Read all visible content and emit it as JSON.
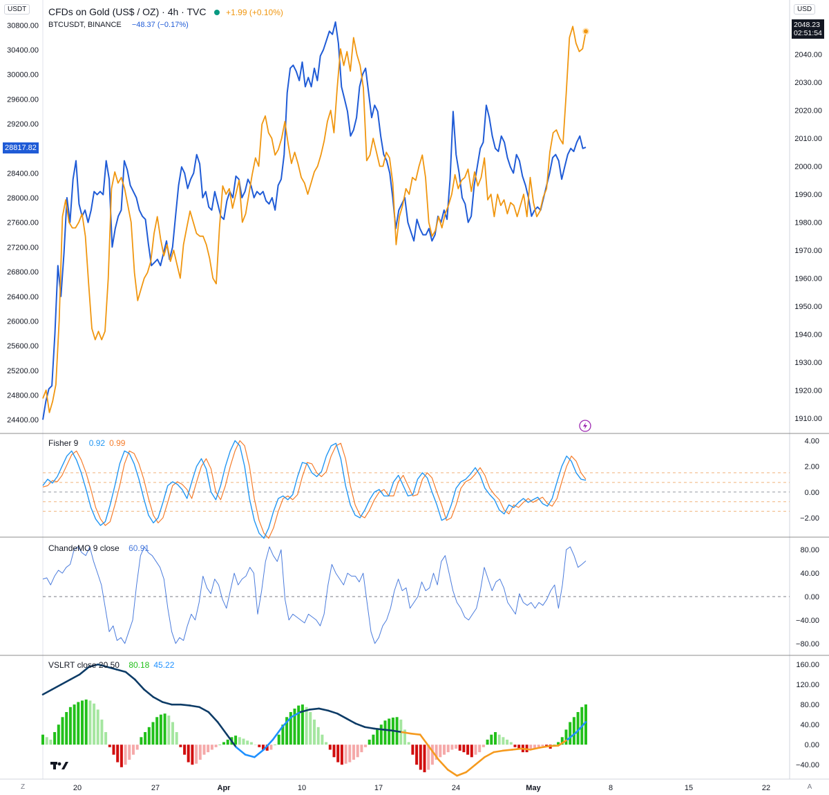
{
  "colors": {
    "gold": "#f0960f",
    "btc": "#1f5bd6",
    "fisher": "#2196f3",
    "fisher_trigger": "#f57c2a",
    "cmo": "#4a7bdc",
    "vslrt_up_strong": "#22c01a",
    "vslrt_up_weak": "#a5e6a0",
    "vslrt_down_strong": "#d10e0e",
    "vslrt_down_weak": "#f5a9a9",
    "vslrt_line_dark": "#0d3b66",
    "vslrt_line_light": "#1e90ff",
    "vslrt_line_orange": "#f59a1e"
  },
  "header": {
    "symbol_title": "CFDs on Gold (US$ / OZ) · 4h · TVC",
    "gold_change": "+1.99 (+0.10%)",
    "compare_symbol": "BTCUSDT, BINANCE",
    "btc_change": "−48.37 (−0.17%)",
    "left_unit": "USDT",
    "right_unit": "USD",
    "btc_last": "28817.82",
    "gold_last": "2048.23",
    "countdown": "02:51:54"
  },
  "panes": {
    "fisher": {
      "label": "Fisher 9",
      "value1": "0.92",
      "value2": "0.99"
    },
    "cmo": {
      "label": "ChandeMO 9 close",
      "value": "60.91"
    },
    "vslrt": {
      "label": "VSLRT close 20 50",
      "value1": "80.18",
      "value2": "45.22"
    }
  },
  "bottom_controls": {
    "zoom": "Z",
    "auto": "A"
  },
  "chart_data": {
    "type": "line",
    "x_axis": {
      "ticks": [
        "20",
        "27",
        "Apr",
        "10",
        "17",
        "24",
        "May",
        "8",
        "15",
        "22"
      ]
    },
    "main": {
      "left_axis": {
        "ticks": [
          "24400.00",
          "24800.00",
          "25200.00",
          "25600.00",
          "26000.00",
          "26400.00",
          "26800.00",
          "27200.00",
          "27600.00",
          "28000.00",
          "28400.00",
          "28800.00",
          "29200.00",
          "29600.00",
          "30000.00",
          "30400.00",
          "30800.00"
        ],
        "ylim": [
          24200,
          30960
        ]
      },
      "right_axis": {
        "ticks": [
          "1910.00",
          "1920.00",
          "1930.00",
          "1940.00",
          "1950.00",
          "1960.00",
          "1970.00",
          "1980.00",
          "1990.00",
          "2000.00",
          "2010.00",
          "2020.00",
          "2030.00",
          "2040.00",
          "2050.00"
        ],
        "ylim": [
          1905,
          2054
        ]
      },
      "series": [
        {
          "name": "BTCUSDT, BINANCE",
          "axis": "left",
          "values": [
            24400,
            24700,
            24900,
            24950,
            25800,
            26900,
            26400,
            27100,
            28000,
            27600,
            28300,
            28600,
            27900,
            27700,
            27800,
            27600,
            27800,
            28100,
            28050,
            28100,
            28050,
            28600,
            28300,
            27200,
            27500,
            27700,
            27800,
            28600,
            28450,
            28200,
            28100,
            28000,
            27800,
            27700,
            27650,
            27250,
            26900,
            26950,
            27000,
            26900,
            27100,
            27300,
            27000,
            27200,
            27700,
            28200,
            28500,
            28400,
            28150,
            28300,
            28400,
            28700,
            28550,
            28000,
            28100,
            27850,
            27800,
            28100,
            27900,
            27700,
            27650,
            27950,
            28100,
            28000,
            28350,
            28300,
            28000,
            28100,
            28300,
            28200,
            28000,
            28100,
            28050,
            28100,
            27950,
            27900,
            28000,
            27800,
            28200,
            28300,
            28700,
            29700,
            30100,
            30150,
            30050,
            29900,
            30200,
            29800,
            29950,
            29800,
            30100,
            29900,
            30300,
            30400,
            30550,
            30700,
            30650,
            30850,
            30500,
            29800,
            29600,
            29400,
            29000,
            29100,
            29300,
            29800,
            30000,
            30100,
            29700,
            29300,
            29500,
            29400,
            29000,
            28700,
            28600,
            28400,
            28000,
            27500,
            27800,
            27900,
            28000,
            27600,
            27450,
            27300,
            27650,
            27500,
            27400,
            27400,
            27500,
            27300,
            27400,
            27700,
            27600,
            27800,
            27650,
            28300,
            29400,
            28700,
            28400,
            28000,
            27900,
            27600,
            27700,
            28200,
            28500,
            28800,
            28900,
            29500,
            29300,
            29000,
            28800,
            28750,
            29000,
            28900,
            28650,
            28500,
            28400,
            28700,
            28600,
            28350,
            28200,
            28000,
            27700,
            27800,
            27850,
            27800,
            28000,
            28200,
            28400,
            28650,
            28700,
            28600,
            28300,
            28500,
            28700,
            28800,
            28750,
            28900,
            29000,
            28800,
            28817.82
          ]
        },
        {
          "name": "CFDs on Gold (US$ / OZ)",
          "axis": "right",
          "values": [
            1917,
            1920,
            1912,
            1916,
            1922,
            1945,
            1982,
            1988,
            1980,
            1978,
            1978,
            1980,
            1983,
            1975,
            1958,
            1942,
            1938,
            1941,
            1938,
            1941,
            1960,
            1992,
            1998,
            1994,
            1996,
            1992,
            1986,
            1980,
            1962,
            1952,
            1956,
            1960,
            1962,
            1966,
            1976,
            1982,
            1974,
            1968,
            1972,
            1966,
            1970,
            1965,
            1960,
            1972,
            1978,
            1984,
            1980,
            1976,
            1975,
            1975,
            1972,
            1967,
            1960,
            1958,
            1978,
            1993,
            1990,
            1992,
            1985,
            1990,
            1995,
            1980,
            1983,
            1990,
            1997,
            2003,
            2000,
            2015,
            2018,
            2012,
            2010,
            2004,
            2006,
            2010,
            2016,
            2008,
            2001,
            2005,
            2001,
            1996,
            1994,
            1990,
            1994,
            1998,
            2000,
            2004,
            2009,
            2016,
            2020,
            2012,
            2028,
            2042,
            2036,
            2041,
            2034,
            2046,
            2040,
            2036,
            2028,
            2002,
            2004,
            2010,
            2005,
            2000,
            2000,
            2005,
            2003,
            1994,
            1972,
            1982,
            1986,
            1992,
            1990,
            1996,
            1995,
            2000,
            2004,
            1996,
            1980,
            1975,
            1977,
            1982,
            1978,
            1983,
            1986,
            1990,
            1997,
            1992,
            1995,
            1996,
            1999,
            1991,
            1998,
            1993,
            1996,
            2003,
            1988,
            1990,
            1982,
            1990,
            1986,
            1988,
            1983,
            1987,
            1986,
            1982,
            1986,
            1990,
            1982,
            1996,
            1987,
            1982,
            1984,
            1989,
            1992,
            2005,
            2012,
            2013,
            2010,
            2008,
            2026,
            2046,
            2050,
            2044,
            2041,
            2042,
            2048.23
          ]
        }
      ]
    },
    "fisher": {
      "y_axis": {
        "ticks": [
          "4.00",
          "2.00",
          "0.00",
          "−2.00"
        ],
        "ylim": [
          -3.4,
          4.4
        ]
      },
      "series": [
        {
          "label": "0.92",
          "values": [
            0.5,
            1.0,
            0.7,
            1.2,
            2.0,
            2.8,
            3.2,
            2.5,
            1.5,
            0.2,
            -1.2,
            -2.1,
            -2.6,
            -2.3,
            -1.0,
            0.5,
            2.2,
            3.2,
            3.0,
            2.2,
            1.0,
            -0.5,
            -1.8,
            -2.4,
            -2.0,
            -0.8,
            0.5,
            0.8,
            0.6,
            0.2,
            -0.5,
            0.8,
            2.0,
            2.6,
            1.8,
            0.0,
            -0.6,
            0.5,
            2.0,
            3.2,
            4.0,
            3.6,
            2.0,
            -0.5,
            -2.2,
            -3.2,
            -3.6,
            -2.8,
            -1.5,
            -0.5,
            -0.3,
            -0.6,
            -0.2,
            1.2,
            2.3,
            2.2,
            1.5,
            1.2,
            1.6,
            2.8,
            3.6,
            3.8,
            2.6,
            0.5,
            -1.0,
            -1.8,
            -2.0,
            -1.4,
            -0.6,
            0.0,
            0.2,
            -0.3,
            -0.3,
            0.8,
            1.3,
            0.5,
            -0.3,
            -0.2,
            1.0,
            1.5,
            1.1,
            0.0,
            -1.0,
            -2.2,
            -2.0,
            -1.0,
            0.3,
            0.8,
            1.0,
            1.4,
            1.9,
            1.3,
            0.3,
            -0.2,
            -0.6,
            -1.4,
            -1.7,
            -1.0,
            -1.2,
            -0.8,
            -0.5,
            -0.8,
            -0.6,
            -0.4,
            -0.9,
            -1.1,
            -0.5,
            0.8,
            2.0,
            2.8,
            2.4,
            1.5,
            1.0,
            0.92
          ]
        },
        {
          "label": "0.99",
          "values": [
            0.4,
            0.5,
            0.9,
            0.8,
            1.3,
            2.1,
            2.9,
            3.2,
            2.5,
            1.5,
            0.2,
            -1.2,
            -2.1,
            -2.6,
            -2.3,
            -1.0,
            0.5,
            2.2,
            3.2,
            3.0,
            2.2,
            1.0,
            -0.5,
            -1.8,
            -2.4,
            -2.0,
            -0.8,
            0.5,
            0.8,
            0.6,
            0.2,
            -0.5,
            0.8,
            2.0,
            2.6,
            1.8,
            0.0,
            -0.6,
            0.5,
            2.0,
            3.2,
            4.0,
            3.6,
            2.0,
            -0.5,
            -2.2,
            -3.2,
            -3.6,
            -2.8,
            -1.5,
            -0.5,
            -0.3,
            -0.6,
            -0.2,
            1.2,
            2.3,
            2.2,
            1.5,
            1.2,
            1.6,
            2.8,
            3.6,
            3.8,
            2.6,
            0.5,
            -1.0,
            -1.8,
            -2.0,
            -1.4,
            -0.6,
            0.0,
            0.2,
            -0.3,
            -0.3,
            0.8,
            1.3,
            0.5,
            -0.3,
            -0.2,
            1.0,
            1.5,
            1.1,
            0.0,
            -1.0,
            -2.2,
            -2.0,
            -1.0,
            0.3,
            0.8,
            1.0,
            1.4,
            1.9,
            1.3,
            0.3,
            -0.2,
            -0.6,
            -1.4,
            -1.7,
            -1.0,
            -1.2,
            -0.8,
            -0.5,
            -0.8,
            -0.6,
            -0.4,
            -0.9,
            -1.1,
            -0.5,
            0.8,
            2.0,
            2.8,
            2.4,
            1.5,
            0.99
          ]
        }
      ],
      "levels": [
        1.5,
        0.75,
        0,
        -0.75,
        -1.5
      ]
    },
    "cmo": {
      "y_axis": {
        "ticks": [
          "80.00",
          "40.00",
          "0.00",
          "−40.00",
          "−80.00"
        ],
        "ylim": [
          -98,
          98
        ]
      },
      "zero_line": 0,
      "values": [
        30,
        32,
        20,
        35,
        45,
        40,
        50,
        55,
        80,
        85,
        75,
        70,
        85,
        60,
        40,
        20,
        -20,
        -60,
        -50,
        -75,
        -70,
        -80,
        -60,
        -40,
        20,
        70,
        85,
        75,
        70,
        60,
        50,
        30,
        -20,
        -60,
        -80,
        -70,
        -75,
        -50,
        -30,
        -40,
        -10,
        35,
        15,
        5,
        30,
        20,
        -5,
        -20,
        10,
        40,
        20,
        30,
        35,
        50,
        40,
        -30,
        10,
        60,
        85,
        70,
        60,
        80,
        -5,
        -40,
        -30,
        -35,
        -40,
        -45,
        -30,
        -35,
        -40,
        -50,
        -30,
        20,
        55,
        40,
        30,
        20,
        40,
        35,
        35,
        25,
        40,
        -10,
        -60,
        -80,
        -70,
        -50,
        -40,
        -20,
        10,
        30,
        10,
        15,
        -20,
        -10,
        0,
        25,
        10,
        15,
        40,
        20,
        60,
        70,
        40,
        10,
        -10,
        -20,
        -35,
        -40,
        -30,
        -20,
        10,
        50,
        30,
        10,
        25,
        30,
        15,
        -10,
        -20,
        -30,
        5,
        -10,
        -15,
        -10,
        -20,
        -10,
        -15,
        -5,
        10,
        20,
        -20,
        20,
        80,
        85,
        70,
        50,
        55,
        60.91
      ]
    },
    "vslrt": {
      "y_axis": {
        "ticks": [
          "160.00",
          "120.00",
          "80.00",
          "40.00",
          "0.00",
          "−40.00"
        ],
        "ylim": [
          -66,
          174
        ]
      },
      "histogram": [
        20,
        15,
        10,
        25,
        40,
        55,
        65,
        75,
        80,
        85,
        88,
        90,
        88,
        82,
        70,
        50,
        25,
        -5,
        -20,
        -35,
        -45,
        -40,
        -30,
        -20,
        -10,
        15,
        25,
        35,
        45,
        55,
        60,
        62,
        58,
        45,
        25,
        -5,
        -20,
        -35,
        -40,
        -38,
        -30,
        -20,
        -15,
        -10,
        -5,
        0,
        5,
        10,
        15,
        18,
        15,
        12,
        8,
        5,
        0,
        -5,
        -10,
        -12,
        -10,
        0,
        20,
        40,
        55,
        65,
        72,
        78,
        80,
        75,
        65,
        50,
        35,
        20,
        5,
        -10,
        -25,
        -35,
        -40,
        -38,
        -35,
        -30,
        -25,
        -15,
        -5,
        10,
        20,
        30,
        40,
        48,
        52,
        54,
        55,
        50,
        30,
        5,
        -20,
        -40,
        -50,
        -55,
        -50,
        -40,
        -30,
        -25,
        -20,
        -15,
        -10,
        -8,
        -12,
        -15,
        -20,
        -25,
        -20,
        -15,
        -5,
        10,
        20,
        25,
        20,
        15,
        10,
        5,
        -5,
        -10,
        -15,
        -15,
        -10,
        -8,
        -5,
        -3,
        -5,
        -8,
        0,
        5,
        15,
        30,
        45,
        55,
        65,
        75,
        80.18
      ],
      "long_line": [
        100,
        110,
        120,
        130,
        140,
        155,
        160,
        155,
        150,
        145,
        130,
        110,
        95,
        85,
        80,
        80,
        78,
        75,
        65,
        45,
        20,
        -5,
        -20,
        -25,
        -10,
        10,
        35,
        55,
        65,
        70,
        72,
        68,
        62,
        52,
        42,
        35,
        32,
        30,
        28,
        25,
        22,
        20,
        -5,
        -30,
        -50,
        -62,
        -55,
        -40,
        -25,
        -15,
        -12,
        -10,
        -8,
        -10,
        -6,
        -3,
        -2,
        10,
        25,
        45.22
      ],
      "line_colors": [
        "dark",
        "dark",
        "dark",
        "dark",
        "dark",
        "dark",
        "dark",
        "dark",
        "dark",
        "dark",
        "dark",
        "dark",
        "dark",
        "dark",
        "dark",
        "dark",
        "dark",
        "dark",
        "dark",
        "dark",
        "dark",
        "light",
        "light",
        "light",
        "light",
        "light",
        "light",
        "light",
        "dark",
        "dark",
        "dark",
        "dark",
        "dark",
        "dark",
        "dark",
        "dark",
        "dark",
        "dark",
        "dark",
        "orange",
        "orange",
        "orange",
        "orange",
        "orange",
        "orange",
        "orange",
        "orange",
        "orange",
        "orange",
        "orange",
        "orange",
        "orange",
        "orange",
        "orange",
        "orange",
        "orange",
        "orange",
        "light",
        "light",
        "light"
      ]
    }
  }
}
